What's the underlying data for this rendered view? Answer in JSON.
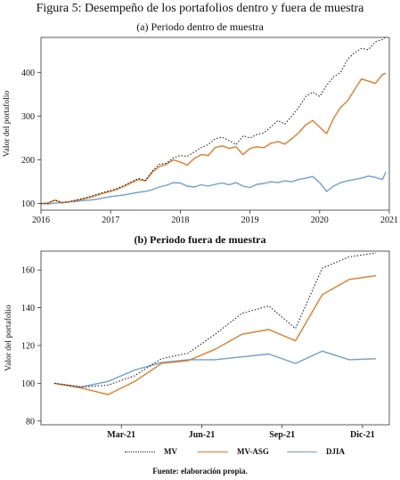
{
  "figure_title": "Figura 5: Desempeño de los portafolios dentro y fuera de muestra",
  "source": "Fuente: elaboración propia.",
  "colors": {
    "MV": "#222222",
    "MV-ASG": "#e07b2a",
    "DJIA": "#6e9fd0"
  },
  "legend": [
    {
      "name": "MV",
      "style": "dotted"
    },
    {
      "name": "MV-ASG",
      "style": "solid"
    },
    {
      "name": "DJIA",
      "style": "solid"
    }
  ],
  "chart_data": [
    {
      "type": "line",
      "title": "(a) Periodo dentro de muestra",
      "ylabel": "Valor del portafolio",
      "xlabel": "",
      "xlim": [
        2016,
        2021
      ],
      "ylim": [
        85,
        480
      ],
      "yticks": [
        100,
        200,
        300,
        400
      ],
      "xticks": [
        "2016",
        "2017",
        "2018",
        "2019",
        "2020",
        "2021"
      ],
      "x": [
        2016.0,
        2016.1,
        2016.2,
        2016.3,
        2016.4,
        2016.5,
        2016.6,
        2016.7,
        2016.8,
        2016.9,
        2017.0,
        2017.1,
        2017.2,
        2017.3,
        2017.4,
        2017.5,
        2017.6,
        2017.7,
        2017.8,
        2017.9,
        2018.0,
        2018.1,
        2018.2,
        2018.3,
        2018.4,
        2018.5,
        2018.6,
        2018.7,
        2018.8,
        2018.9,
        2019.0,
        2019.1,
        2019.2,
        2019.3,
        2019.4,
        2019.5,
        2019.6,
        2019.7,
        2019.8,
        2019.9,
        2020.0,
        2020.1,
        2020.2,
        2020.3,
        2020.4,
        2020.5,
        2020.6,
        2020.7,
        2020.8,
        2020.9,
        2020.95
      ],
      "series": [
        {
          "name": "MV",
          "values": [
            100,
            101,
            108,
            103,
            104,
            108,
            112,
            116,
            121,
            126,
            130,
            135,
            142,
            150,
            158,
            153,
            175,
            190,
            192,
            205,
            210,
            208,
            218,
            228,
            235,
            248,
            252,
            244,
            235,
            255,
            250,
            258,
            262,
            275,
            290,
            282,
            300,
            320,
            345,
            355,
            345,
            370,
            390,
            400,
            430,
            445,
            455,
            452,
            470,
            475,
            482
          ]
        },
        {
          "name": "MV-ASG",
          "values": [
            100,
            101,
            108,
            102,
            104,
            107,
            110,
            114,
            119,
            124,
            128,
            133,
            140,
            148,
            155,
            152,
            172,
            185,
            190,
            200,
            195,
            188,
            203,
            212,
            210,
            228,
            232,
            226,
            230,
            212,
            226,
            230,
            228,
            238,
            242,
            236,
            248,
            262,
            280,
            290,
            275,
            260,
            295,
            320,
            335,
            360,
            385,
            380,
            375,
            395,
            398
          ]
        },
        {
          "name": "DJIA",
          "values": [
            100,
            99,
            101,
            102,
            104,
            105,
            107,
            108,
            110,
            113,
            116,
            118,
            120,
            123,
            126,
            128,
            132,
            138,
            142,
            148,
            147,
            140,
            138,
            143,
            140,
            144,
            147,
            143,
            148,
            140,
            137,
            144,
            146,
            150,
            148,
            152,
            150,
            155,
            158,
            162,
            148,
            128,
            140,
            148,
            152,
            155,
            158,
            163,
            160,
            155,
            172
          ]
        }
      ]
    },
    {
      "type": "line",
      "title": "(b) Periodo fuera de muestra",
      "ylabel": "Valor del portafolio",
      "xlabel": "",
      "xlim": [
        0,
        13
      ],
      "ylim": [
        78,
        170
      ],
      "yticks": [
        80,
        100,
        120,
        140,
        160
      ],
      "xticks": [
        {
          "label": "Mar-21",
          "x": 3
        },
        {
          "label": "Jun-21",
          "x": 6
        },
        {
          "label": "Sep-21",
          "x": 9
        },
        {
          "label": "Dic-21",
          "x": 12
        }
      ],
      "x": [
        0.5,
        1.5,
        2.5,
        3.5,
        4.5,
        5.5,
        6.5,
        7.5,
        8.5,
        9.5,
        10.5,
        11.5,
        12.5
      ],
      "series": [
        {
          "name": "MV",
          "values": [
            100,
            98,
            99,
            104,
            113,
            116,
            126,
            137,
            141,
            129,
            161,
            167,
            169
          ]
        },
        {
          "name": "MV-ASG",
          "values": [
            100,
            97.5,
            94,
            101,
            110.5,
            112,
            118,
            126,
            128.5,
            122.5,
            147,
            155,
            157
          ]
        },
        {
          "name": "DJIA",
          "values": [
            100,
            98,
            101,
            107,
            111,
            112.5,
            112.5,
            114,
            115.5,
            110.5,
            117,
            112.5,
            113
          ]
        }
      ]
    }
  ]
}
